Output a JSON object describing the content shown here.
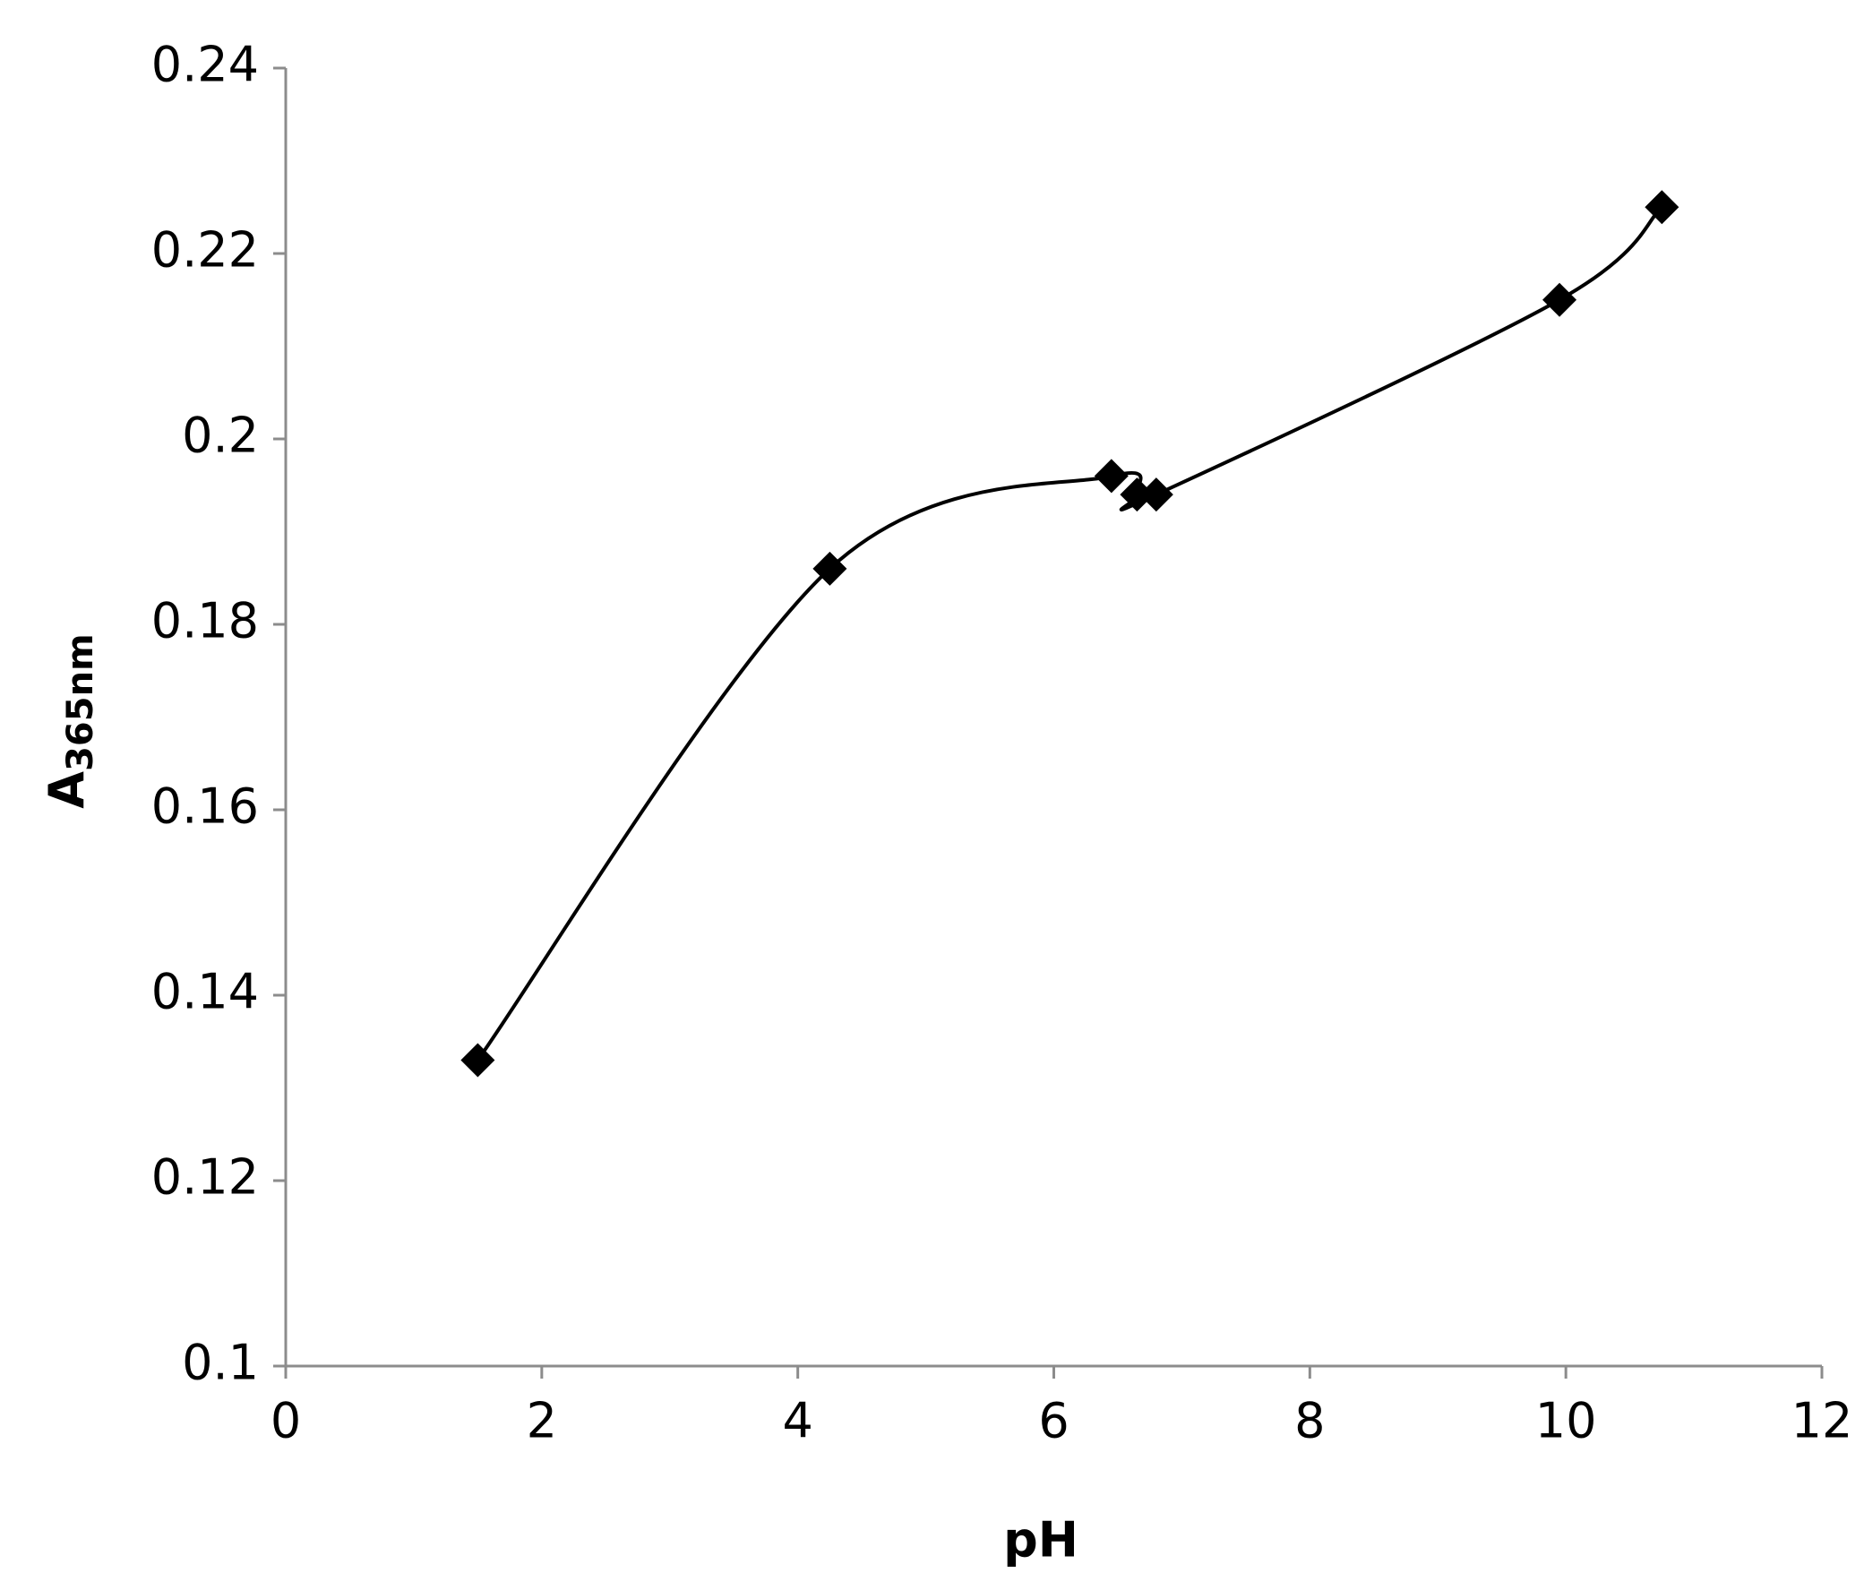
{
  "chart_data": {
    "type": "scatter",
    "xlabel": "pH",
    "ylabel": "A",
    "ylabel_subscript": "365nm",
    "series": [
      {
        "color": "#000000",
        "x": [
          1.5,
          4.25,
          6.45,
          6.65,
          6.8,
          9.95,
          10.75
        ],
        "values": [
          0.133,
          0.186,
          0.196,
          0.194,
          0.194,
          0.215,
          0.225
        ]
      }
    ],
    "smooth_line": true,
    "marker": "diamond",
    "xlim": [
      0,
      12
    ],
    "xticks": [
      0,
      2,
      4,
      6,
      8,
      10,
      12
    ],
    "ylim": [
      0.1,
      0.24
    ],
    "yticks": [
      0.1,
      0.12,
      0.14,
      0.16,
      0.18,
      0.2,
      0.22,
      0.24
    ],
    "grid": false
  }
}
